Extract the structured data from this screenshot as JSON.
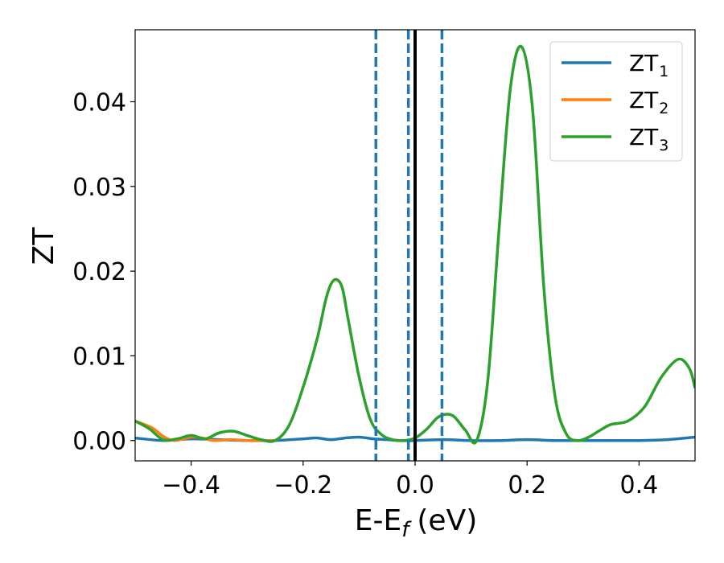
{
  "chart_data": {
    "type": "line",
    "xlabel": "E-E",
    "xlabel_sub": "f",
    "xlabel_unit": "(eV)",
    "ylabel": "ZT",
    "xlim": [
      -0.5,
      0.5
    ],
    "ylim": [
      -0.0024,
      0.0485
    ],
    "xticks": [
      -0.4,
      -0.2,
      0.0,
      0.2,
      0.4
    ],
    "xtick_labels": [
      "−0.4",
      "−0.2",
      "0.0",
      "0.2",
      "0.4"
    ],
    "yticks": [
      0.0,
      0.01,
      0.02,
      0.03,
      0.04
    ],
    "ytick_labels": [
      "0.00",
      "0.01",
      "0.02",
      "0.03",
      "0.04"
    ],
    "legend_position": "top-right",
    "vlines": [
      {
        "x": -0.07,
        "style": "dashed",
        "color": "#1f77b4"
      },
      {
        "x": -0.012,
        "style": "dashed",
        "color": "#1f77b4"
      },
      {
        "x": 0.048,
        "style": "dashed",
        "color": "#1f77b4"
      },
      {
        "x": 0.0,
        "style": "solid",
        "color": "#000000"
      }
    ],
    "series": [
      {
        "name": "ZT",
        "sub": "1",
        "color": "#1f77b4",
        "x": [
          -0.5,
          -0.45,
          -0.4,
          -0.35,
          -0.3,
          -0.25,
          -0.2,
          -0.175,
          -0.15,
          -0.125,
          -0.1,
          -0.075,
          -0.05,
          -0.025,
          0.0,
          0.05,
          0.1,
          0.15,
          0.2,
          0.25,
          0.3,
          0.35,
          0.4,
          0.45,
          0.5
        ],
        "y": [
          0.0003,
          0.0,
          0.0002,
          0.0001,
          0.0,
          0.0,
          0.0002,
          0.0003,
          0.0001,
          0.0003,
          0.0004,
          0.0002,
          0.0001,
          0.0,
          0.0,
          0.0001,
          0.0,
          0.0,
          0.0001,
          0.0,
          0.0,
          0.0,
          0.0,
          0.0001,
          0.0004
        ]
      },
      {
        "name": "ZT",
        "sub": "2",
        "color": "#ff7f0e",
        "x": [
          -0.5,
          -0.47,
          -0.45,
          -0.43,
          -0.4,
          -0.38,
          -0.36,
          -0.33,
          -0.3,
          -0.28,
          -0.25
        ],
        "y": [
          0.0023,
          0.0015,
          0.0005,
          0.0,
          0.0004,
          0.0003,
          0.0,
          0.0001,
          0.0,
          0.0,
          0.0
        ]
      },
      {
        "name": "ZT",
        "sub": "3",
        "color": "#2ca02c",
        "x": [
          -0.5,
          -0.475,
          -0.45,
          -0.425,
          -0.4,
          -0.375,
          -0.35,
          -0.325,
          -0.3,
          -0.275,
          -0.25,
          -0.225,
          -0.2,
          -0.175,
          -0.16,
          -0.15,
          -0.14,
          -0.13,
          -0.12,
          -0.1,
          -0.08,
          -0.06,
          -0.04,
          -0.02,
          0.0,
          0.02,
          0.04,
          0.055,
          0.07,
          0.09,
          0.11,
          0.13,
          0.15,
          0.17,
          0.19,
          0.21,
          0.23,
          0.25,
          0.27,
          0.29,
          0.31,
          0.33,
          0.35,
          0.38,
          0.41,
          0.44,
          0.47,
          0.49,
          0.5
        ],
        "y": [
          0.0023,
          0.0014,
          0.0001,
          0.0002,
          0.0006,
          0.0002,
          0.0009,
          0.0011,
          0.0006,
          0.0001,
          0.0,
          0.0018,
          0.0063,
          0.012,
          0.0165,
          0.0185,
          0.019,
          0.018,
          0.0145,
          0.0075,
          0.0025,
          0.0007,
          0.0001,
          0.0,
          0.0003,
          0.0013,
          0.0027,
          0.0031,
          0.0028,
          0.0012,
          0.0,
          0.0072,
          0.025,
          0.0415,
          0.0465,
          0.039,
          0.018,
          0.0052,
          0.0008,
          0.0,
          0.0004,
          0.0012,
          0.0019,
          0.0023,
          0.004,
          0.0075,
          0.0096,
          0.0085,
          0.0062
        ]
      }
    ]
  }
}
